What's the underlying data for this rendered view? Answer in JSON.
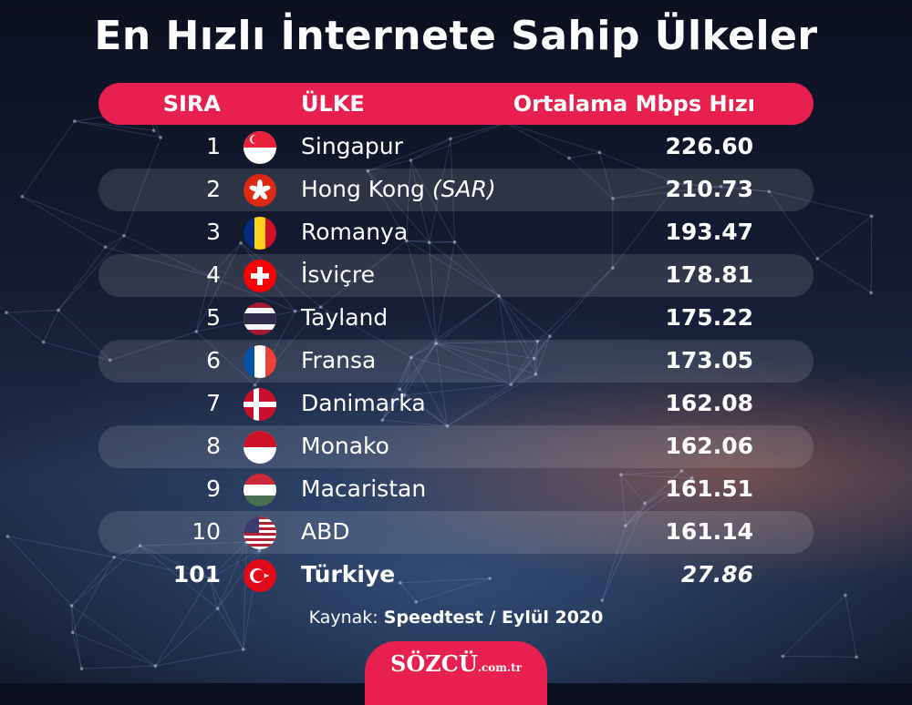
{
  "title": "En Hızlı İnternete Sahip Ülkeler",
  "header": {
    "rank": "SIRA",
    "country": "ÜLKE",
    "speed": "Ortalama Mbps Hızı"
  },
  "chart_data": {
    "type": "table",
    "columns": [
      "SIRA",
      "ÜLKE",
      "Ortalama Mbps Hızı"
    ],
    "rows": [
      {
        "rank": "1",
        "country": "Singapur",
        "suffix": "",
        "speed": "226.60",
        "flag": "singapore-flag-icon"
      },
      {
        "rank": "2",
        "country": "Hong Kong ",
        "suffix": "(SAR)",
        "speed": "210.73",
        "flag": "hong-kong-flag-icon"
      },
      {
        "rank": "3",
        "country": "Romanya",
        "suffix": "",
        "speed": "193.47",
        "flag": "romania-flag-icon"
      },
      {
        "rank": "4",
        "country": "İsviçre",
        "suffix": "",
        "speed": "178.81",
        "flag": "switzerland-flag-icon"
      },
      {
        "rank": "5",
        "country": "Tayland",
        "suffix": "",
        "speed": "175.22",
        "flag": "thailand-flag-icon"
      },
      {
        "rank": "6",
        "country": "Fransa",
        "suffix": "",
        "speed": "173.05",
        "flag": "france-flag-icon"
      },
      {
        "rank": "7",
        "country": "Danimarka",
        "suffix": "",
        "speed": "162.08",
        "flag": "denmark-flag-icon"
      },
      {
        "rank": "8",
        "country": "Monako",
        "suffix": "",
        "speed": "162.06",
        "flag": "monaco-flag-icon"
      },
      {
        "rank": "9",
        "country": "Macaristan",
        "suffix": "",
        "speed": "161.51",
        "flag": "hungary-flag-icon"
      },
      {
        "rank": "10",
        "country": "ABD",
        "suffix": "",
        "speed": "161.14",
        "flag": "usa-flag-icon"
      },
      {
        "rank": "101",
        "country": "Türkiye",
        "suffix": "",
        "speed": "27.86",
        "flag": "turkey-flag-icon"
      }
    ]
  },
  "source": {
    "label": "Kaynak: ",
    "value": "Speedtest / Eylül 2020"
  },
  "brand": {
    "name": "SÖZCÜ",
    "suffix": ".com.tr"
  },
  "colors": {
    "accent": "#e8204f",
    "row_shade": "rgba(255,255,255,0.12)",
    "text": "#ffffff"
  }
}
